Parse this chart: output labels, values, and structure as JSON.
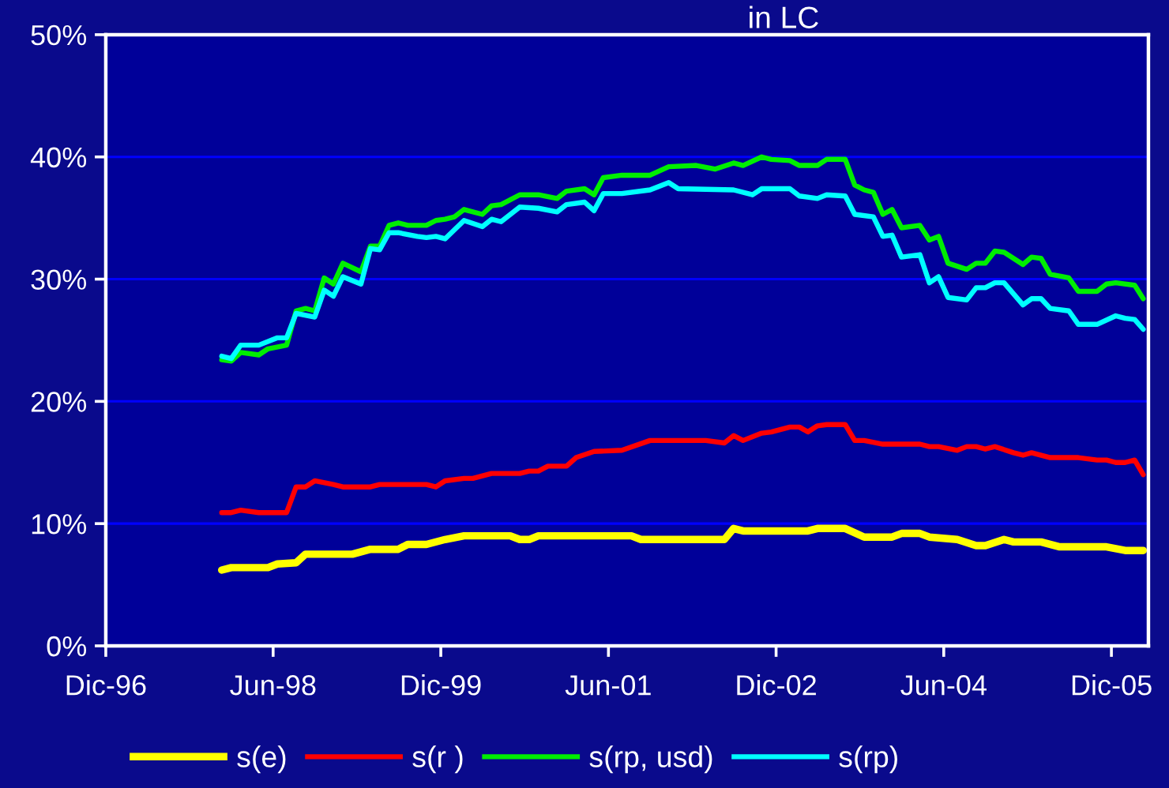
{
  "chart_data": {
    "type": "line",
    "title": "in LC",
    "xlim": [
      "1996-12",
      "2006-04"
    ],
    "xticks": [
      {
        "value": "1996-12",
        "label": "Dic-96"
      },
      {
        "value": "1998-06",
        "label": "Jun-98"
      },
      {
        "value": "1999-12",
        "label": "Dic-99"
      },
      {
        "value": "2001-06",
        "label": "Jun-01"
      },
      {
        "value": "2002-12",
        "label": "Dic-02"
      },
      {
        "value": "2004-06",
        "label": "Jun-04"
      },
      {
        "value": "2005-12",
        "label": "Dic-05"
      }
    ],
    "ylim": [
      0,
      50
    ],
    "yticks": [
      {
        "value": 0,
        "label": "0%"
      },
      {
        "value": 10,
        "label": "10%"
      },
      {
        "value": 20,
        "label": "20%"
      },
      {
        "value": 30,
        "label": "30%"
      },
      {
        "value": 40,
        "label": "40%"
      },
      {
        "value": 50,
        "label": "50%"
      }
    ],
    "grid": "y",
    "legend": "bottom",
    "line_style": "solid",
    "series": [
      {
        "name": "s(e)",
        "color": "#ffff00",
        "x": [
          "1997-12-15",
          "1998-01-15",
          "1998-05-15",
          "1998-06-15",
          "1998-08-15",
          "1998-09-15",
          "1999-02-15",
          "1999-04-15",
          "1999-07-15",
          "1999-08-15",
          "1999-10-15",
          "1999-12-15",
          "2000-02-15",
          "2000-07-15",
          "2000-08-15",
          "2000-09-15",
          "2000-10-15",
          "2001-08-15",
          "2001-09-15",
          "2002-06-15",
          "2002-07-15",
          "2002-08-15",
          "2003-03-15",
          "2003-04-15",
          "2003-07-15",
          "2003-09-15",
          "2003-12-15",
          "2004-01-15",
          "2004-03-15",
          "2004-04-15",
          "2004-07-15",
          "2004-09-15",
          "2004-10-15",
          "2004-12-15",
          "2005-01-15",
          "2005-04-15",
          "2005-06-15",
          "2005-11-15",
          "2006-01-15",
          "2006-03-15"
        ],
        "values": [
          6.2,
          6.4,
          6.4,
          6.7,
          6.8,
          7.5,
          7.5,
          7.9,
          7.9,
          8.3,
          8.3,
          8.7,
          9.0,
          9.0,
          8.7,
          8.7,
          9.0,
          9.0,
          8.7,
          8.7,
          9.6,
          9.4,
          9.4,
          9.6,
          9.6,
          8.9,
          8.9,
          9.2,
          9.2,
          8.9,
          8.7,
          8.2,
          8.2,
          8.7,
          8.5,
          8.5,
          8.1,
          8.1,
          7.8,
          7.8
        ]
      },
      {
        "name": "s(r )",
        "color": "#ff0000",
        "x": [
          "1997-12-15",
          "1998-01-15",
          "1998-02-15",
          "1998-04-15",
          "1998-07-15",
          "1998-08-15",
          "1998-09-15",
          "1998-10-15",
          "1998-12-15",
          "1999-01-15",
          "1999-04-15",
          "1999-05-15",
          "1999-10-15",
          "1999-11-15",
          "1999-12-15",
          "2000-02-15",
          "2000-03-15",
          "2000-05-15",
          "2000-08-15",
          "2000-09-15",
          "2000-10-15",
          "2000-11-15",
          "2001-01-15",
          "2001-02-15",
          "2001-04-15",
          "2001-07-15",
          "2001-10-15",
          "2002-04-15",
          "2002-06-15",
          "2002-07-15",
          "2002-08-15",
          "2002-10-15",
          "2002-11-15",
          "2003-01-15",
          "2003-02-15",
          "2003-03-15",
          "2003-04-15",
          "2003-05-15",
          "2003-07-15",
          "2003-08-15",
          "2003-09-15",
          "2003-11-15",
          "2004-03-15",
          "2004-04-15",
          "2004-05-15",
          "2004-07-15",
          "2004-08-15",
          "2004-09-15",
          "2004-10-15",
          "2004-11-15",
          "2005-01-15",
          "2005-02-15",
          "2005-03-15",
          "2005-05-15",
          "2005-08-15",
          "2005-10-15",
          "2005-11-15",
          "2005-12-15",
          "2006-01-15",
          "2006-02-15",
          "2006-03-15"
        ],
        "values": [
          10.9,
          10.9,
          11.1,
          10.9,
          10.9,
          13.0,
          13.0,
          13.5,
          13.2,
          13.0,
          13.0,
          13.2,
          13.2,
          13.0,
          13.5,
          13.7,
          13.7,
          14.1,
          14.1,
          14.3,
          14.3,
          14.7,
          14.7,
          15.4,
          15.9,
          16.0,
          16.8,
          16.8,
          16.6,
          17.2,
          16.8,
          17.4,
          17.5,
          17.9,
          17.9,
          17.5,
          18.0,
          18.1,
          18.1,
          16.8,
          16.8,
          16.5,
          16.5,
          16.3,
          16.3,
          16.0,
          16.3,
          16.3,
          16.1,
          16.3,
          15.8,
          15.6,
          15.8,
          15.4,
          15.4,
          15.2,
          15.2,
          15.0,
          15.0,
          15.2,
          14.0
        ]
      },
      {
        "name": "s(rp, usd)",
        "color": "#00ee00",
        "x": [
          "1997-12-15",
          "1998-01-15",
          "1998-02-15",
          "1998-04-15",
          "1998-05-15",
          "1998-07-15",
          "1998-08-15",
          "1998-09-15",
          "1998-10-15",
          "1998-11-15",
          "1998-12-15",
          "1999-01-15",
          "1999-03-15",
          "1999-04-15",
          "1999-05-15",
          "1999-06-15",
          "1999-07-15",
          "1999-08-15",
          "1999-10-15",
          "1999-11-15",
          "1999-12-15",
          "2000-01-15",
          "2000-02-15",
          "2000-04-15",
          "2000-05-15",
          "2000-06-15",
          "2000-08-15",
          "2000-10-15",
          "2000-12-15",
          "2001-01-15",
          "2001-03-15",
          "2001-04-15",
          "2001-05-15",
          "2001-07-15",
          "2001-10-15",
          "2001-12-15",
          "2002-03-15",
          "2002-05-15",
          "2002-07-15",
          "2002-08-15",
          "2002-10-15",
          "2002-11-15",
          "2003-01-15",
          "2003-02-15",
          "2003-04-15",
          "2003-05-15",
          "2003-07-15",
          "2003-08-15",
          "2003-09-15",
          "2003-10-15",
          "2003-11-15",
          "2003-12-15",
          "2004-01-15",
          "2004-03-15",
          "2004-04-15",
          "2004-05-15",
          "2004-06-15",
          "2004-08-15",
          "2004-09-15",
          "2004-10-15",
          "2004-11-15",
          "2004-12-15",
          "2005-02-15",
          "2005-03-15",
          "2005-04-15",
          "2005-05-15",
          "2005-07-15",
          "2005-08-15",
          "2005-10-15",
          "2005-11-15",
          "2005-12-15",
          "2006-02-15",
          "2006-03-15"
        ],
        "values": [
          23.4,
          23.3,
          24.0,
          23.8,
          24.3,
          24.6,
          27.4,
          27.6,
          27.4,
          30.1,
          29.6,
          31.3,
          30.6,
          32.7,
          32.7,
          34.4,
          34.6,
          34.4,
          34.4,
          34.8,
          34.9,
          35.1,
          35.7,
          35.3,
          36.0,
          36.1,
          36.9,
          36.9,
          36.6,
          37.2,
          37.4,
          36.9,
          38.3,
          38.5,
          38.5,
          39.2,
          39.3,
          39.0,
          39.5,
          39.3,
          40.0,
          39.8,
          39.7,
          39.3,
          39.3,
          39.8,
          39.8,
          37.7,
          37.3,
          37.1,
          35.3,
          35.7,
          34.2,
          34.4,
          33.2,
          33.5,
          31.3,
          30.8,
          31.3,
          31.3,
          32.3,
          32.2,
          31.2,
          31.8,
          31.7,
          30.4,
          30.1,
          29.0,
          29.0,
          29.6,
          29.7,
          29.5,
          28.4
        ]
      },
      {
        "name": "s(rp)",
        "color": "#00ffff",
        "x": [
          "1997-12-15",
          "1998-01-15",
          "1998-02-15",
          "1998-04-15",
          "1998-06-15",
          "1998-07-15",
          "1998-08-15",
          "1998-10-15",
          "1998-11-15",
          "1998-12-15",
          "1999-01-15",
          "1999-03-15",
          "1999-04-15",
          "1999-05-15",
          "1999-06-15",
          "1999-07-15",
          "1999-09-15",
          "1999-10-15",
          "1999-11-15",
          "1999-12-15",
          "2000-02-15",
          "2000-04-15",
          "2000-05-15",
          "2000-06-15",
          "2000-08-15",
          "2000-10-15",
          "2000-12-15",
          "2001-01-15",
          "2001-03-15",
          "2001-04-15",
          "2001-05-15",
          "2001-07-15",
          "2001-10-15",
          "2001-12-15",
          "2002-01-15",
          "2002-07-15",
          "2002-09-15",
          "2002-10-15",
          "2003-01-15",
          "2003-02-15",
          "2003-04-15",
          "2003-05-15",
          "2003-07-15",
          "2003-08-15",
          "2003-10-15",
          "2003-11-15",
          "2003-12-15",
          "2004-01-15",
          "2004-03-15",
          "2004-04-15",
          "2004-05-15",
          "2004-06-15",
          "2004-08-15",
          "2004-09-15",
          "2004-10-15",
          "2004-11-15",
          "2004-12-15",
          "2005-02-15",
          "2005-03-15",
          "2005-04-15",
          "2005-05-15",
          "2005-07-15",
          "2005-08-15",
          "2005-10-15",
          "2005-12-15",
          "2006-01-15",
          "2006-02-15",
          "2006-03-15"
        ],
        "values": [
          23.7,
          23.5,
          24.6,
          24.6,
          25.2,
          25.2,
          27.2,
          26.9,
          29.1,
          28.6,
          30.2,
          29.6,
          32.5,
          32.4,
          33.8,
          33.8,
          33.5,
          33.4,
          33.5,
          33.3,
          34.8,
          34.3,
          34.9,
          34.7,
          35.9,
          35.8,
          35.5,
          36.1,
          36.3,
          35.6,
          37.0,
          37.0,
          37.3,
          37.9,
          37.4,
          37.3,
          36.9,
          37.4,
          37.4,
          36.8,
          36.6,
          36.9,
          36.8,
          35.3,
          35.1,
          33.5,
          33.6,
          31.8,
          32.0,
          29.7,
          30.2,
          28.5,
          28.3,
          29.3,
          29.3,
          29.7,
          29.7,
          27.9,
          28.4,
          28.4,
          27.6,
          27.4,
          26.3,
          26.3,
          27.0,
          26.8,
          26.7,
          25.9
        ]
      }
    ]
  }
}
